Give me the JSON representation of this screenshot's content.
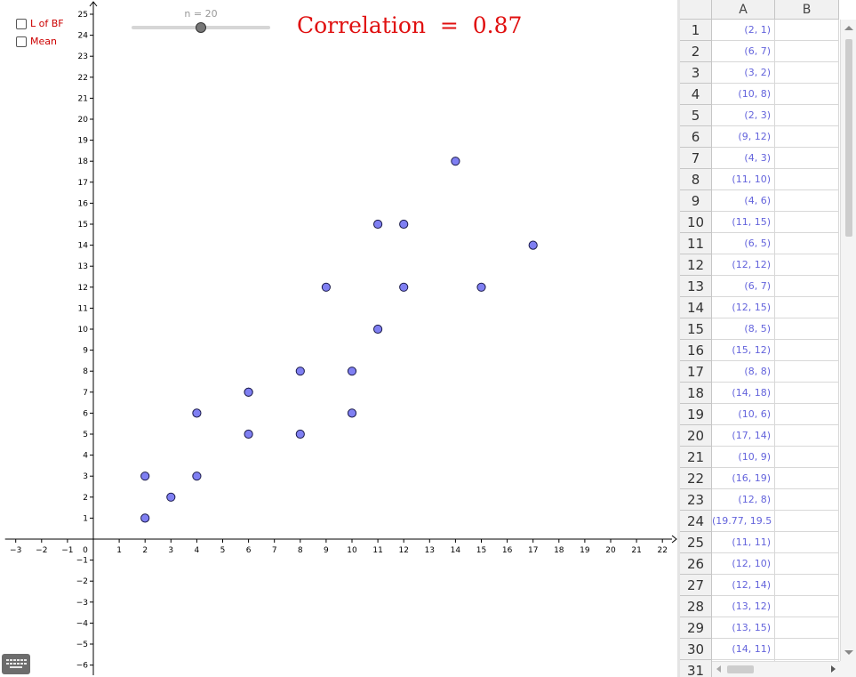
{
  "toolbar": {
    "checkboxes": [
      {
        "label": "L of BF",
        "checked": false
      },
      {
        "label": "Mean",
        "checked": false
      }
    ],
    "slider": {
      "label": "n = 20",
      "value": 20,
      "min": 0,
      "max": 40
    },
    "correlation": {
      "label": "Correlation",
      "equals": "=",
      "value": "0.87"
    },
    "keyboard_icon": "keyboard-icon"
  },
  "colors": {
    "point_fill": "#7f7ff2",
    "point_stroke": "#1a1a4a",
    "accent_red": "#e01010",
    "cell_text": "#6464dc"
  },
  "chart_data": {
    "type": "scatter",
    "xlim": [
      -3,
      22
    ],
    "ylim": [
      -6,
      25
    ],
    "grid": false,
    "x_ticks": [
      -3,
      -2,
      -1,
      0,
      1,
      2,
      3,
      4,
      5,
      6,
      7,
      8,
      9,
      10,
      11,
      12,
      13,
      14,
      15,
      16,
      17,
      18,
      19,
      20,
      21,
      22
    ],
    "y_ticks": [
      -6,
      -5,
      -4,
      -3,
      -2,
      -1,
      1,
      2,
      3,
      4,
      5,
      6,
      7,
      8,
      9,
      10,
      11,
      12,
      13,
      14,
      15,
      16,
      17,
      18,
      19,
      20,
      21,
      22,
      23,
      24,
      25
    ],
    "points": [
      [
        2,
        1
      ],
      [
        6,
        7
      ],
      [
        3,
        2
      ],
      [
        10,
        8
      ],
      [
        2,
        3
      ],
      [
        9,
        12
      ],
      [
        4,
        3
      ],
      [
        11,
        10
      ],
      [
        4,
        6
      ],
      [
        11,
        15
      ],
      [
        6,
        5
      ],
      [
        12,
        12
      ],
      [
        6,
        7
      ],
      [
        12,
        15
      ],
      [
        8,
        5
      ],
      [
        15,
        12
      ],
      [
        8,
        8
      ],
      [
        14,
        18
      ],
      [
        10,
        6
      ],
      [
        17,
        14
      ]
    ]
  },
  "spreadsheet": {
    "columns": [
      "A",
      "B"
    ],
    "rows": [
      {
        "n": "1",
        "a": "(2, 1)"
      },
      {
        "n": "2",
        "a": "(6, 7)"
      },
      {
        "n": "3",
        "a": "(3, 2)"
      },
      {
        "n": "4",
        "a": "(10, 8)"
      },
      {
        "n": "5",
        "a": "(2, 3)"
      },
      {
        "n": "6",
        "a": "(9, 12)"
      },
      {
        "n": "7",
        "a": "(4, 3)"
      },
      {
        "n": "8",
        "a": "(11, 10)"
      },
      {
        "n": "9",
        "a": "(4, 6)"
      },
      {
        "n": "10",
        "a": "(11, 15)"
      },
      {
        "n": "11",
        "a": "(6, 5)"
      },
      {
        "n": "12",
        "a": "(12, 12)"
      },
      {
        "n": "13",
        "a": "(6, 7)"
      },
      {
        "n": "14",
        "a": "(12, 15)"
      },
      {
        "n": "15",
        "a": "(8, 5)"
      },
      {
        "n": "16",
        "a": "(15, 12)"
      },
      {
        "n": "17",
        "a": "(8, 8)"
      },
      {
        "n": "18",
        "a": "(14, 18)"
      },
      {
        "n": "19",
        "a": "(10, 6)"
      },
      {
        "n": "20",
        "a": "(17, 14)"
      },
      {
        "n": "21",
        "a": "(10, 9)"
      },
      {
        "n": "22",
        "a": "(16, 19)"
      },
      {
        "n": "23",
        "a": "(12, 8)"
      },
      {
        "n": "24",
        "a": "(19.77, 19.5"
      },
      {
        "n": "25",
        "a": "(11, 11)"
      },
      {
        "n": "26",
        "a": "(12, 10)"
      },
      {
        "n": "27",
        "a": "(12, 14)"
      },
      {
        "n": "28",
        "a": "(13, 12)"
      },
      {
        "n": "29",
        "a": "(13, 15)"
      },
      {
        "n": "30",
        "a": "(14, 11)"
      },
      {
        "n": "31",
        "a": ""
      }
    ]
  }
}
